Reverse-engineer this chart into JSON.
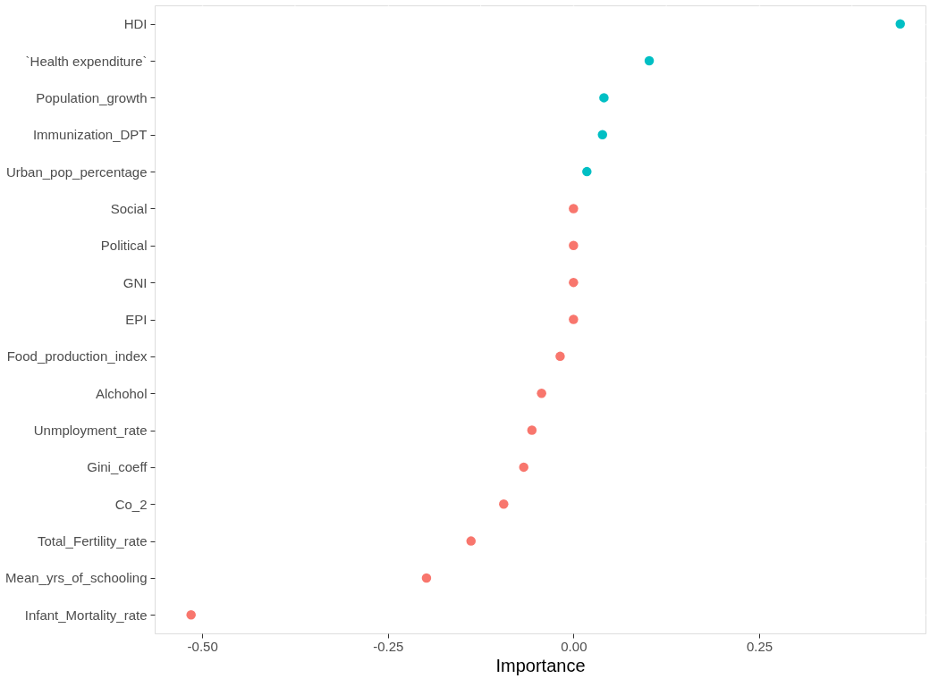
{
  "chart_data": {
    "type": "scatter",
    "orientation": "horizontal",
    "xlabel": "Importance",
    "categories": [
      "HDI",
      "`Health expenditure`",
      "Population_growth",
      "Immunization_DPT",
      "Urban_pop_percentage",
      "Social",
      "Political",
      "GNI",
      "EPI",
      "Food_production_index",
      "Alchohol",
      "Unmployment_rate",
      "Gini_coeff",
      "Co_2",
      "Total_Fertility_rate",
      "Mean_yrs_of_schooling",
      "Infant_Mortality_rate"
    ],
    "values": [
      0.44,
      0.102,
      0.041,
      0.039,
      0.018,
      0,
      0,
      0,
      0,
      -0.018,
      -0.043,
      -0.056,
      -0.067,
      -0.094,
      -0.138,
      -0.198,
      -0.515
    ],
    "colors": [
      "#00bfc4",
      "#00bfc4",
      "#00bfc4",
      "#00bfc4",
      "#00bfc4",
      "#f8766d",
      "#f8766d",
      "#f8766d",
      "#f8766d",
      "#f8766d",
      "#f8766d",
      "#f8766d",
      "#f8766d",
      "#f8766d",
      "#f8766d",
      "#f8766d",
      "#f8766d"
    ],
    "xlim": [
      -0.564,
      0.474
    ],
    "xticks": [
      {
        "value": -0.5,
        "label": "-0.50"
      },
      {
        "value": -0.25,
        "label": "-0.25"
      },
      {
        "value": 0,
        "label": "0.00"
      },
      {
        "value": 0.25,
        "label": "0.25"
      }
    ],
    "grid": true,
    "marker": "circle"
  }
}
